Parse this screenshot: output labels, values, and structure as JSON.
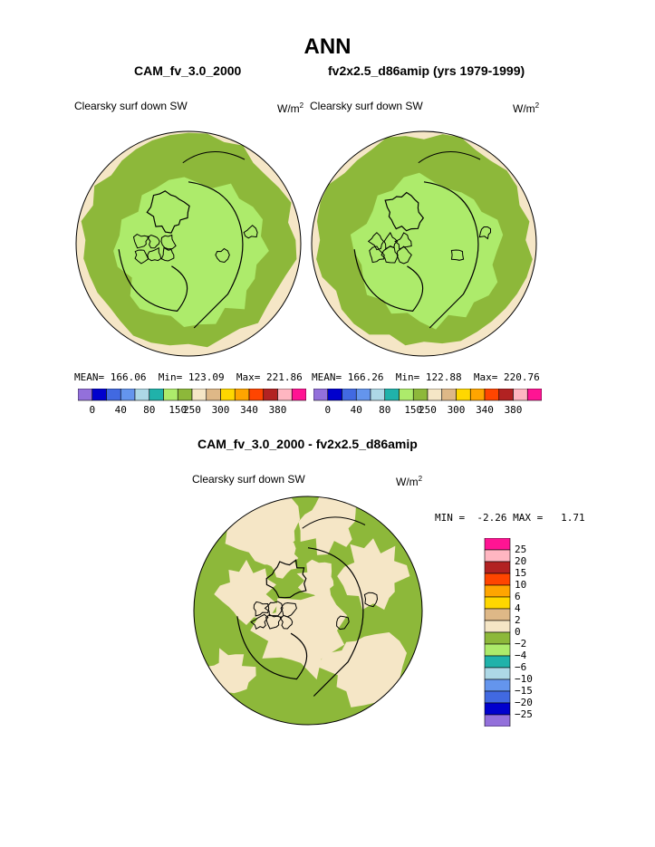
{
  "figure": {
    "title": "ANN",
    "case1_title": "CAM_fv_3.0_2000",
    "case2_title": "fv2x2.5_d86amip (yrs 1979-1999)",
    "diff_title": "CAM_fv_3.0_2000 - fv2x2.5_d86amip"
  },
  "panels": [
    {
      "variable": "Clearsky surf down SW",
      "units_base": "W/m",
      "units_exp": "2",
      "mean_label": "MEAN=",
      "mean": "166.06",
      "min_label": "Min=",
      "min": "123.09",
      "max_label": "Max=",
      "max": "221.86"
    },
    {
      "variable": "Clearsky surf down SW",
      "units_base": "W/m",
      "units_exp": "2",
      "mean_label": "MEAN=",
      "mean": "166.26",
      "min_label": "Min=",
      "min": "122.88",
      "max_label": "Max=",
      "max": "220.76"
    },
    {
      "variable": "Clearsky surf down SW",
      "units_base": "W/m",
      "units_exp": "2",
      "min_label": "MIN =",
      "min": "-2.26",
      "max_label": "MAX =",
      "max": "1.71"
    }
  ],
  "colorbar_abs": {
    "tick_labels": [
      "0",
      "40",
      "80",
      "150",
      "250",
      "300",
      "340",
      "380"
    ],
    "colors": [
      "#9370DB",
      "#0000CD",
      "#4169E1",
      "#6495ED",
      "#ADD8E6",
      "#20B2AA",
      "#ADEB6B",
      "#8DB83A",
      "#F5E6C6",
      "#DEB887",
      "#FFD700",
      "#FFA500",
      "#FF4500",
      "#B22222",
      "#FFB6C1",
      "#FF1493"
    ]
  },
  "colorbar_diff": {
    "labels": [
      "25",
      "20",
      "15",
      "10",
      "6",
      "4",
      "2",
      "0",
      "-2",
      "-4",
      "-6",
      "-10",
      "-15",
      "-20",
      "-25"
    ],
    "colors": [
      "#FF1493",
      "#FFB6C1",
      "#B22222",
      "#FF4500",
      "#FFA500",
      "#FFD700",
      "#DEB887",
      "#F5E6C6",
      "#8DB83A",
      "#ADEB6B",
      "#20B2AA",
      "#ADD8E6",
      "#6495ED",
      "#4169E1",
      "#0000CD",
      "#9370DB"
    ]
  },
  "map_colors": {
    "outer_ring": "#F5E6C6",
    "mid_band": "#8DB83A",
    "pole_cap": "#ADEB6B",
    "diff_base": "#8DB83A",
    "diff_patch": "#F5E6C6",
    "coast": "#000000"
  },
  "projection": "north-polar-stereographic"
}
